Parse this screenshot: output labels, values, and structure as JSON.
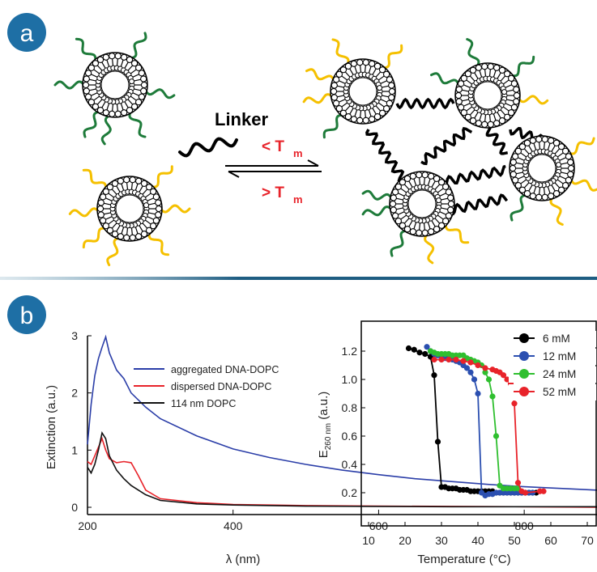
{
  "panel_a": {
    "badge": "a",
    "linker_label": "Linker",
    "forward_label_symbol": "< T",
    "forward_label_sub": "m",
    "reverse_label_symbol": "> T",
    "reverse_label_sub": "m",
    "colors": {
      "strand_green": "#1e7b3a",
      "strand_yellow": "#f5c000",
      "linker": "#000000",
      "temp_text": "#e8232a"
    }
  },
  "panel_b": {
    "badge": "b"
  },
  "colors": {
    "badge_fill": "#1e6fa5",
    "divider": "#1e5d82"
  },
  "chart_data": [
    {
      "type": "line",
      "xlabel": "λ (nm)",
      "ylabel": "Extinction (a.u.)",
      "xlim": [
        200,
        900
      ],
      "ylim": [
        -0.05,
        3.0
      ],
      "xticks": [
        200,
        400,
        600,
        800
      ],
      "yticks": [
        0,
        1,
        2,
        3
      ],
      "legend_position": "top-right",
      "series": [
        {
          "name": "aggregated DNA-DOPC",
          "color": "#2b3ea8",
          "x": [
            200,
            205,
            210,
            215,
            220,
            225,
            230,
            240,
            250,
            260,
            280,
            300,
            350,
            400,
            450,
            500,
            550,
            600,
            650,
            700,
            750,
            800,
            850,
            900
          ],
          "y": [
            1.1,
            1.8,
            2.3,
            2.6,
            2.8,
            2.98,
            2.7,
            2.4,
            2.25,
            2.0,
            1.75,
            1.55,
            1.25,
            1.02,
            0.87,
            0.75,
            0.65,
            0.57,
            0.5,
            0.45,
            0.4,
            0.36,
            0.33,
            0.3
          ]
        },
        {
          "name": "dispersed DNA-DOPC",
          "color": "#e8232a",
          "x": [
            200,
            205,
            210,
            215,
            220,
            225,
            230,
            240,
            250,
            260,
            270,
            280,
            300,
            350,
            400,
            450,
            500,
            600,
            700,
            800,
            900
          ],
          "y": [
            0.8,
            0.75,
            0.9,
            1.05,
            1.2,
            1.0,
            0.85,
            0.78,
            0.8,
            0.78,
            0.55,
            0.3,
            0.15,
            0.08,
            0.05,
            0.04,
            0.03,
            0.02,
            0.015,
            0.01,
            0.0
          ]
        },
        {
          "name": "114 nm DOPC",
          "color": "#111111",
          "x": [
            200,
            205,
            210,
            215,
            220,
            225,
            230,
            240,
            250,
            260,
            280,
            300,
            350,
            400,
            500,
            600,
            700,
            800,
            900
          ],
          "y": [
            0.7,
            0.6,
            0.75,
            1.0,
            1.3,
            1.2,
            0.9,
            0.65,
            0.5,
            0.38,
            0.22,
            0.12,
            0.06,
            0.04,
            0.02,
            0.015,
            0.01,
            0.01,
            0.01
          ]
        }
      ]
    },
    {
      "type": "scatter",
      "xlabel": "Temperature (°C)",
      "ylabel": "E",
      "ylabel_sub": "260 nm",
      "ylabel_suffix": " (a.u.)",
      "xlim": [
        6,
        73
      ],
      "ylim": [
        0.1,
        1.3
      ],
      "xticks": [
        10,
        20,
        30,
        40,
        50,
        60,
        70
      ],
      "yticks": [
        0.2,
        0.4,
        0.6,
        0.8,
        1.0,
        1.2
      ],
      "legend_position": "top-right",
      "series": [
        {
          "name": "6 mM",
          "color": "#000000",
          "x": [
            21,
            22.5,
            24,
            25.5,
            27,
            28,
            29,
            30,
            31,
            32,
            33,
            34,
            35,
            36,
            37,
            38,
            39,
            40,
            41,
            42,
            43,
            44,
            45,
            46,
            47,
            48,
            49,
            50,
            51,
            52,
            53,
            54,
            55,
            56
          ],
          "y": [
            1.22,
            1.21,
            1.19,
            1.18,
            1.16,
            1.03,
            0.56,
            0.24,
            0.24,
            0.23,
            0.23,
            0.23,
            0.22,
            0.22,
            0.22,
            0.21,
            0.21,
            0.21,
            0.21,
            0.21,
            0.21,
            0.21,
            0.2,
            0.2,
            0.2,
            0.2,
            0.2,
            0.2,
            0.2,
            0.2,
            0.2,
            0.2,
            0.2,
            0.2
          ]
        },
        {
          "name": "12 mM",
          "color": "#2b4fb0",
          "x": [
            26,
            27,
            28,
            29,
            30,
            31,
            32,
            33,
            34,
            35,
            36,
            37,
            38,
            39,
            40,
            41,
            42,
            43,
            44,
            45,
            46,
            47,
            48,
            49,
            50,
            51,
            52,
            53,
            54,
            55
          ],
          "y": [
            1.23,
            1.2,
            1.18,
            1.17,
            1.16,
            1.15,
            1.15,
            1.14,
            1.13,
            1.12,
            1.1,
            1.08,
            1.05,
            1.0,
            0.9,
            0.2,
            0.18,
            0.19,
            0.19,
            0.2,
            0.2,
            0.2,
            0.2,
            0.2,
            0.2,
            0.2,
            0.2,
            0.2,
            0.2,
            0.2
          ]
        },
        {
          "name": "24 mM",
          "color": "#2fbf2f",
          "x": [
            27,
            28,
            29,
            30,
            31,
            32,
            33,
            34,
            35,
            36,
            37,
            38,
            39,
            40,
            41,
            42,
            43,
            44,
            45,
            46,
            47,
            48,
            49,
            50,
            51
          ],
          "y": [
            1.2,
            1.19,
            1.18,
            1.18,
            1.18,
            1.18,
            1.17,
            1.17,
            1.17,
            1.17,
            1.15,
            1.14,
            1.13,
            1.12,
            1.1,
            1.05,
            1.0,
            0.88,
            0.6,
            0.25,
            0.23,
            0.23,
            0.23,
            0.23,
            0.23
          ]
        },
        {
          "name": "52 mM",
          "color": "#e8232a",
          "x": [
            28,
            30,
            32,
            34,
            36,
            38,
            40,
            42,
            44,
            45,
            46,
            47,
            48,
            49,
            50,
            51,
            52,
            53,
            57,
            58
          ],
          "y": [
            1.14,
            1.14,
            1.14,
            1.14,
            1.13,
            1.12,
            1.1,
            1.08,
            1.07,
            1.06,
            1.05,
            1.03,
            1.0,
            0.97,
            0.83,
            0.27,
            0.21,
            0.2,
            0.21,
            0.21
          ]
        }
      ]
    }
  ]
}
